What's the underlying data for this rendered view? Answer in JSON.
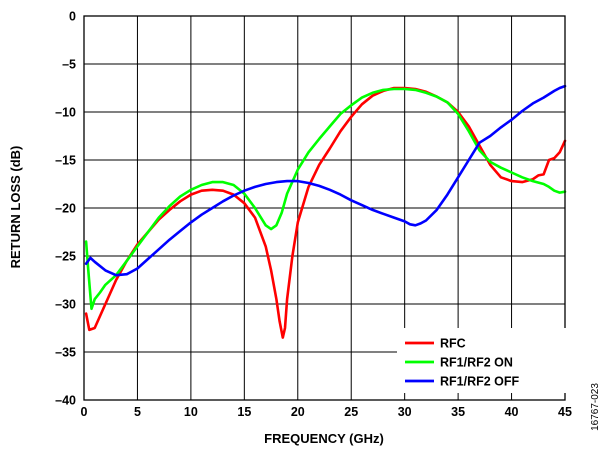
{
  "figure_id": "16767-023",
  "chart_data": {
    "type": "line",
    "title": "",
    "xlabel": "FREQUENCY (GHz)",
    "ylabel": "RETURN LOSS (dB)",
    "xlim": [
      0,
      45
    ],
    "ylim": [
      -40,
      0
    ],
    "xticks": [
      0,
      5,
      10,
      15,
      20,
      25,
      30,
      35,
      40,
      45
    ],
    "yticks": [
      0,
      -5,
      -10,
      -15,
      -20,
      -25,
      -30,
      -35,
      -40
    ],
    "xtick_labels": [
      "0",
      "5",
      "10",
      "15",
      "20",
      "25",
      "30",
      "35",
      "40",
      "45"
    ],
    "ytick_labels": [
      "0",
      "–5",
      "–10",
      "–15",
      "–20",
      "–25",
      "–30",
      "–35",
      "–40"
    ],
    "grid": true,
    "legend_position": "bottom-right",
    "series": [
      {
        "name": "RFC",
        "color": "#ff0000",
        "x": [
          0.2,
          0.5,
          1,
          2,
          3,
          4,
          5,
          6,
          7,
          8,
          9,
          10,
          11,
          12,
          13,
          14,
          15,
          16,
          17,
          17.5,
          18,
          18.3,
          18.6,
          18.8,
          19,
          19.5,
          20,
          21,
          22,
          23,
          24,
          25,
          26,
          27,
          28,
          29,
          30,
          31,
          32,
          33,
          34,
          35,
          36,
          37,
          38,
          39,
          40,
          41,
          42,
          42.5,
          43,
          43.5,
          44,
          44.5,
          45
        ],
        "y": [
          -31,
          -32.7,
          -32.5,
          -30,
          -27.5,
          -25.5,
          -23.8,
          -22.5,
          -21.2,
          -20.2,
          -19.3,
          -18.6,
          -18.2,
          -18.1,
          -18.2,
          -18.6,
          -19.5,
          -21,
          -24,
          -26.5,
          -29.5,
          -31.8,
          -33.5,
          -32.5,
          -29.5,
          -25,
          -21.5,
          -17.8,
          -15.5,
          -13.8,
          -12,
          -10.5,
          -9.2,
          -8.3,
          -7.8,
          -7.5,
          -7.5,
          -7.6,
          -7.9,
          -8.4,
          -9,
          -10,
          -11.5,
          -13.5,
          -15.5,
          -16.8,
          -17.2,
          -17.3,
          -17,
          -16.6,
          -16.5,
          -15,
          -14.8,
          -14.2,
          -13
        ]
      },
      {
        "name": "RF1/RF2 ON",
        "color": "#00ff00",
        "x": [
          0.2,
          0.4,
          0.7,
          1,
          1.5,
          2,
          3,
          4,
          5,
          6,
          7,
          8,
          9,
          10,
          11,
          12,
          13,
          14,
          15,
          16,
          17,
          17.5,
          18,
          18.5,
          19,
          20,
          21,
          22,
          23,
          24,
          25,
          26,
          27,
          28,
          29,
          30,
          31,
          32,
          33,
          34,
          35,
          36,
          37,
          38,
          39,
          40,
          41,
          42,
          43,
          43.5,
          44,
          44.5,
          45
        ],
        "y": [
          -23.5,
          -26.5,
          -30.5,
          -29.5,
          -28.8,
          -28,
          -27,
          -25.5,
          -24,
          -22.5,
          -21,
          -19.8,
          -18.8,
          -18.1,
          -17.6,
          -17.3,
          -17.3,
          -17.6,
          -18.5,
          -20,
          -21.8,
          -22.2,
          -21.8,
          -20.5,
          -18.5,
          -16,
          -14.2,
          -12.8,
          -11.5,
          -10.2,
          -9.3,
          -8.5,
          -8,
          -7.7,
          -7.6,
          -7.6,
          -7.7,
          -8,
          -8.4,
          -9,
          -10.2,
          -12,
          -14,
          -15.2,
          -15.8,
          -16.3,
          -16.8,
          -17.2,
          -17.5,
          -17.8,
          -18.2,
          -18.4,
          -18.3
        ]
      },
      {
        "name": "RF1/RF2 OFF",
        "color": "#0000ff",
        "x": [
          0.2,
          0.6,
          1,
          2,
          3,
          4,
          5,
          6,
          7,
          8,
          9,
          10,
          11,
          12,
          13,
          14,
          15,
          16,
          17,
          18,
          19,
          20,
          21,
          22,
          23,
          24,
          25,
          26,
          27,
          28,
          29,
          30,
          30.5,
          31,
          31.5,
          32,
          33,
          34,
          35,
          36,
          37,
          38,
          39,
          40,
          41,
          42,
          43,
          44,
          44.5,
          45
        ],
        "y": [
          -25.8,
          -25.2,
          -25.6,
          -26.5,
          -27,
          -26.9,
          -26.3,
          -25.3,
          -24.3,
          -23.3,
          -22.4,
          -21.5,
          -20.7,
          -20,
          -19.3,
          -18.7,
          -18.2,
          -17.8,
          -17.5,
          -17.3,
          -17.2,
          -17.2,
          -17.4,
          -17.7,
          -18.1,
          -18.6,
          -19.2,
          -19.7,
          -20.2,
          -20.6,
          -21,
          -21.4,
          -21.7,
          -21.8,
          -21.6,
          -21.3,
          -20.2,
          -18.6,
          -16.8,
          -15,
          -13.2,
          -12.5,
          -11.6,
          -10.8,
          -9.9,
          -9.1,
          -8.5,
          -7.8,
          -7.5,
          -7.3
        ]
      }
    ]
  }
}
